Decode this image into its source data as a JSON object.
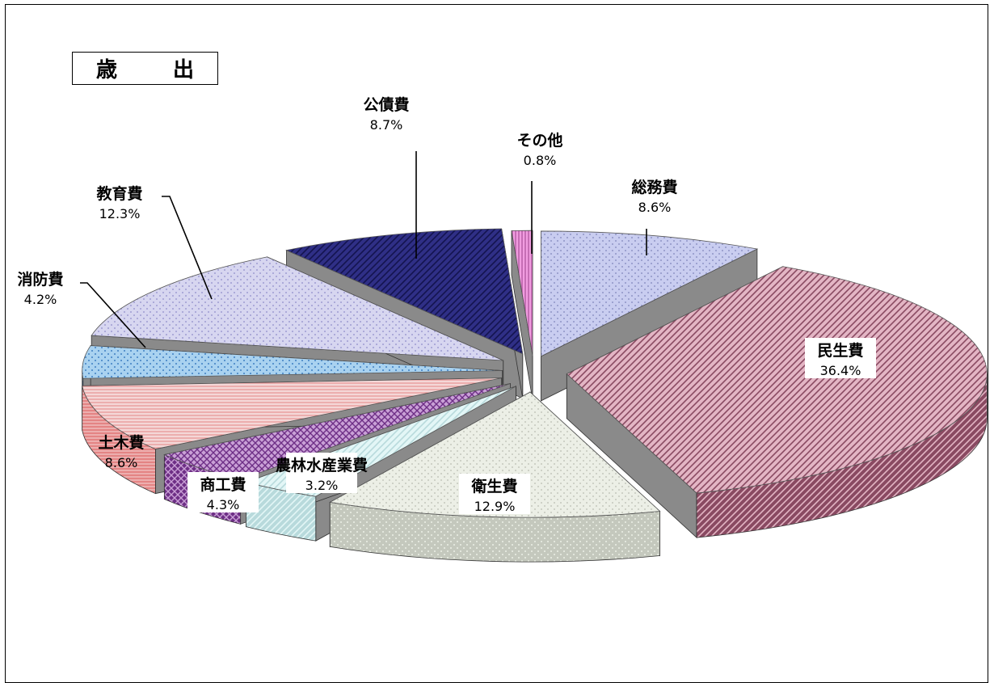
{
  "title": "歳 出",
  "chart_data": {
    "type": "pie",
    "title": "歳 出",
    "style": "3d-exploded",
    "slices": [
      {
        "name": "総務費",
        "value": 8.6,
        "label": "8.6%",
        "color": "#c9cdf0",
        "side": "#8f95c6",
        "pattern": "dots"
      },
      {
        "name": "民生費",
        "value": 36.4,
        "label": "36.4%",
        "color": "#e3b5c4",
        "side": "#8a4a62",
        "pattern": "diag"
      },
      {
        "name": "衛生費",
        "value": 12.9,
        "label": "12.9%",
        "color": "#ecefe6",
        "side": "#c4c8bd",
        "pattern": "dots"
      },
      {
        "name": "農林水産業費",
        "value": 3.2,
        "label": "3.2%",
        "color": "#e3f6f6",
        "side": "#b8dadc",
        "pattern": "diag"
      },
      {
        "name": "商工費",
        "value": 4.3,
        "label": "4.3%",
        "color": "#c9a0d6",
        "side": "#6e2f86",
        "pattern": "cross"
      },
      {
        "name": "土木費",
        "value": 8.6,
        "label": "8.6%",
        "color": "#f4d7d7",
        "side": "#e48484",
        "pattern": "hlines"
      },
      {
        "name": "消防費",
        "value": 4.2,
        "label": "4.2%",
        "color": "#a9d2f0",
        "side": "#3d7fc2",
        "pattern": "dots"
      },
      {
        "name": "教育費",
        "value": 12.3,
        "label": "12.3%",
        "color": "#d7d6f0",
        "side": "#9e9cd2",
        "pattern": "dots"
      },
      {
        "name": "公債費",
        "value": 8.7,
        "label": "8.7%",
        "color": "#2f2f86",
        "side": "#14144f",
        "pattern": "diag"
      },
      {
        "name": "その他",
        "value": 0.8,
        "label": "0.8%",
        "color": "#f19ce0",
        "side": "#b45aa3",
        "pattern": "vlines"
      }
    ]
  }
}
